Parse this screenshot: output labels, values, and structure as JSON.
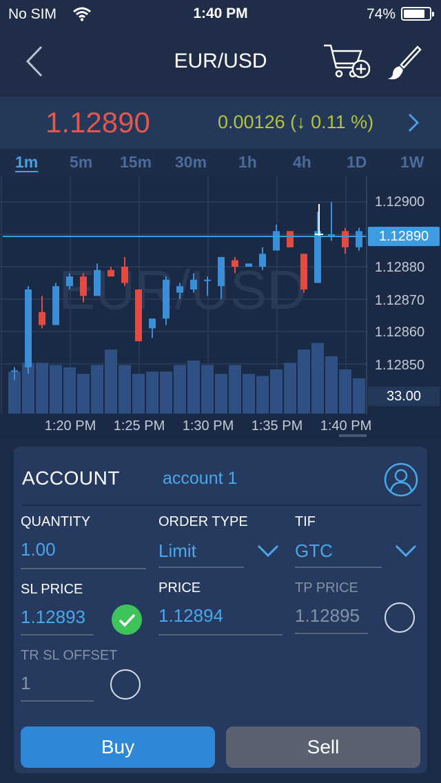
{
  "status_bar": {
    "carrier": "No SIM",
    "time": "1:40 PM",
    "battery": "74%",
    "battery_level": 0.74
  },
  "nav": {
    "title": "EUR/USD"
  },
  "quote": {
    "price": "1.12890",
    "change": "0.00126 (↓ 0.11 %)",
    "price_color": "#e7564e",
    "change_color": "#b5c43a"
  },
  "timeframes": [
    {
      "label": "1m",
      "active": true
    },
    {
      "label": "5m"
    },
    {
      "label": "15m"
    },
    {
      "label": "30m"
    },
    {
      "label": "1h"
    },
    {
      "label": "4h"
    },
    {
      "label": "1D"
    },
    {
      "label": "1W"
    }
  ],
  "chart": {
    "watermark": "EUR/USD",
    "current_price_label": "1.12890",
    "volume_label": "33.00",
    "y_labels": [
      "1.12900",
      "1.12880",
      "1.12870",
      "1.12860",
      "1.12850"
    ],
    "x_labels": [
      "1:20 PM",
      "1:25 PM",
      "1:30 PM",
      "1:35 PM",
      "1:40 PM"
    ]
  },
  "chart_data": {
    "type": "candlestick",
    "current_price": 1.1289,
    "volume_axis_value": 33.0,
    "up_color": "#3b8fd6",
    "down_color": "#e14b42",
    "candles": [
      {
        "o": 1.12848,
        "h": 1.12849,
        "l": 1.12845,
        "c": 1.12848
      },
      {
        "o": 1.12849,
        "h": 1.12874,
        "l": 1.12847,
        "c": 1.12873
      },
      {
        "o": 1.12866,
        "h": 1.12871,
        "l": 1.12861,
        "c": 1.12862
      },
      {
        "o": 1.12862,
        "h": 1.12875,
        "l": 1.12862,
        "c": 1.12874
      },
      {
        "o": 1.12874,
        "h": 1.12878,
        "l": 1.12873,
        "c": 1.12877
      },
      {
        "o": 1.12877,
        "h": 1.12878,
        "l": 1.12869,
        "c": 1.12871
      },
      {
        "o": 1.12871,
        "h": 1.12881,
        "l": 1.12871,
        "c": 1.12879
      },
      {
        "o": 1.12879,
        "h": 1.1288,
        "l": 1.12877,
        "c": 1.12877
      },
      {
        "o": 1.1288,
        "h": 1.12883,
        "l": 1.12874,
        "c": 1.12875
      },
      {
        "o": 1.12873,
        "h": 1.12873,
        "l": 1.12857,
        "c": 1.12857
      },
      {
        "o": 1.12861,
        "h": 1.12864,
        "l": 1.12858,
        "c": 1.12864
      },
      {
        "o": 1.12864,
        "h": 1.12877,
        "l": 1.12862,
        "c": 1.12876
      },
      {
        "o": 1.12872,
        "h": 1.12875,
        "l": 1.1287,
        "c": 1.12874
      },
      {
        "o": 1.12873,
        "h": 1.12878,
        "l": 1.12872,
        "c": 1.12876
      },
      {
        "o": 1.12876,
        "h": 1.12877,
        "l": 1.12871,
        "c": 1.12876
      },
      {
        "o": 1.12874,
        "h": 1.12883,
        "l": 1.1287,
        "c": 1.12883
      },
      {
        "o": 1.12882,
        "h": 1.12883,
        "l": 1.12878,
        "c": 1.1288
      },
      {
        "o": 1.1288,
        "h": 1.12881,
        "l": 1.1288,
        "c": 1.12881
      },
      {
        "o": 1.1288,
        "h": 1.12886,
        "l": 1.12879,
        "c": 1.12884
      },
      {
        "o": 1.12885,
        "h": 1.12893,
        "l": 1.12885,
        "c": 1.12891
      },
      {
        "o": 1.12891,
        "h": 1.12891,
        "l": 1.12886,
        "c": 1.12886
      },
      {
        "o": 1.12884,
        "h": 1.12884,
        "l": 1.12872,
        "c": 1.12873
      },
      {
        "o": 1.12875,
        "h": 1.12897,
        "l": 1.12875,
        "c": 1.12891
      },
      {
        "o": 1.1289,
        "h": 1.129,
        "l": 1.12888,
        "c": 1.1289
      },
      {
        "o": 1.12891,
        "h": 1.12892,
        "l": 1.12884,
        "c": 1.12886
      },
      {
        "o": 1.12886,
        "h": 1.12892,
        "l": 1.12885,
        "c": 1.12891
      }
    ],
    "volume": [
      19,
      23,
      23,
      22,
      21,
      18,
      22,
      29,
      22,
      18,
      19,
      19,
      22,
      24,
      22,
      18,
      22,
      18,
      17,
      20,
      23,
      29,
      32,
      26,
      20,
      16
    ]
  },
  "account": {
    "label": "ACCOUNT",
    "name": "account 1"
  },
  "form": {
    "quantity": {
      "label": "QUANTITY",
      "value": "1.00"
    },
    "order_type": {
      "label": "ORDER TYPE",
      "value": "Limit"
    },
    "tif": {
      "label": "TIF",
      "value": "GTC"
    },
    "sl_price": {
      "label": "SL PRICE",
      "value": "1.12893",
      "enabled": true
    },
    "price": {
      "label": "PRICE",
      "value": "1.12894"
    },
    "tp_price": {
      "label": "TP PRICE",
      "value": "1.12895",
      "enabled": false
    },
    "tr_sl_offset": {
      "label": "TR SL OFFSET",
      "value": "1",
      "enabled": false
    }
  },
  "buttons": {
    "buy": "Buy",
    "sell": "Sell"
  },
  "colors": {
    "accent": "#4aa8ea",
    "buy": "#2f88d7",
    "sell": "#5a6272",
    "check": "#3ec35a"
  }
}
